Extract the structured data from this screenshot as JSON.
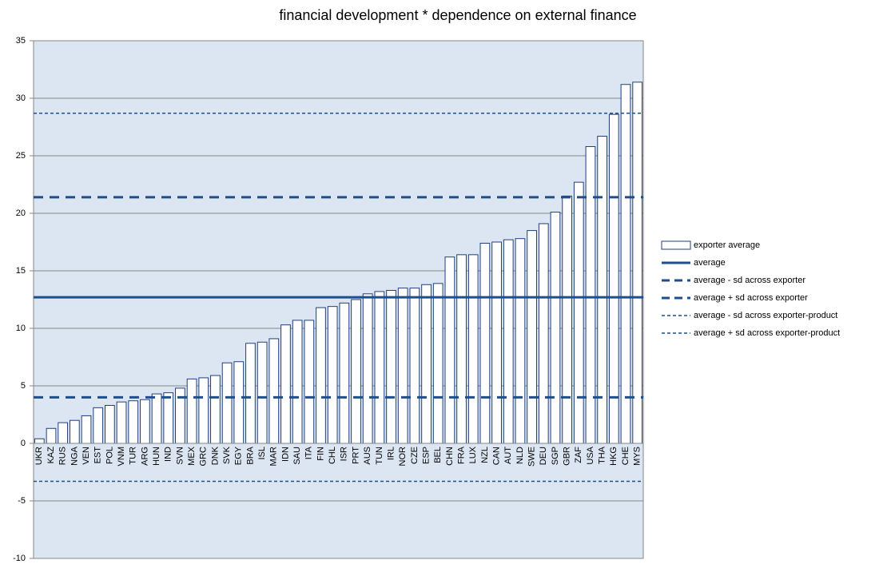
{
  "chart_data": {
    "type": "bar",
    "title": "financial development * dependence on external finance",
    "categories": [
      "UKR",
      "KAZ",
      "RUS",
      "NGA",
      "VEN",
      "EST",
      "POL",
      "VNM",
      "TUR",
      "ARG",
      "HUN",
      "IND",
      "SVN",
      "MEX",
      "GRC",
      "DNK",
      "SVK",
      "EGY",
      "BRA",
      "ISL",
      "MAR",
      "IDN",
      "SAU",
      "ITA",
      "FIN",
      "CHL",
      "ISR",
      "PRT",
      "AUS",
      "TUN",
      "IRL",
      "NOR",
      "CZE",
      "ESP",
      "BEL",
      "CHN",
      "FRA",
      "LUX",
      "NZL",
      "CAN",
      "AUT",
      "NLD",
      "SWE",
      "DEU",
      "SGP",
      "GBR",
      "ZAF",
      "USA",
      "THA",
      "HKG",
      "CHE",
      "MYS"
    ],
    "series": [
      {
        "name": "exporter average",
        "color": "#1f3f7a",
        "values": [
          0.4,
          1.3,
          1.8,
          2.0,
          2.4,
          3.1,
          3.3,
          3.6,
          3.7,
          3.8,
          4.3,
          4.4,
          4.8,
          5.6,
          5.7,
          5.9,
          7.0,
          7.1,
          8.7,
          8.8,
          9.1,
          10.3,
          10.7,
          10.7,
          11.8,
          11.9,
          12.2,
          12.5,
          13.0,
          13.2,
          13.3,
          13.5,
          13.5,
          13.8,
          13.9,
          16.2,
          16.4,
          16.4,
          17.4,
          17.5,
          17.7,
          17.8,
          18.5,
          19.1,
          20.1,
          21.5,
          22.7,
          25.8,
          26.7,
          28.6,
          31.2,
          31.4
        ]
      }
    ],
    "reference_lines": [
      {
        "name": "average",
        "value": 12.7,
        "dash": "solid",
        "color": "#1f4e8c"
      },
      {
        "name": "average - sd across exporter",
        "value": 4.0,
        "dash": "long",
        "color": "#1f4e8c"
      },
      {
        "name": "average + sd across exporter",
        "value": 21.4,
        "dash": "long",
        "color": "#1f4e8c"
      },
      {
        "name": "average - sd across exporter-product",
        "value": -3.3,
        "dash": "short",
        "color": "#1f4e8c"
      },
      {
        "name": "average + sd across exporter-product",
        "value": 28.7,
        "dash": "short",
        "color": "#1f4e8c"
      }
    ],
    "ylim": [
      -10,
      35
    ],
    "yticks": [
      -10,
      -5,
      0,
      5,
      10,
      15,
      20,
      25,
      30,
      35
    ],
    "grid": true,
    "legend": "right"
  }
}
